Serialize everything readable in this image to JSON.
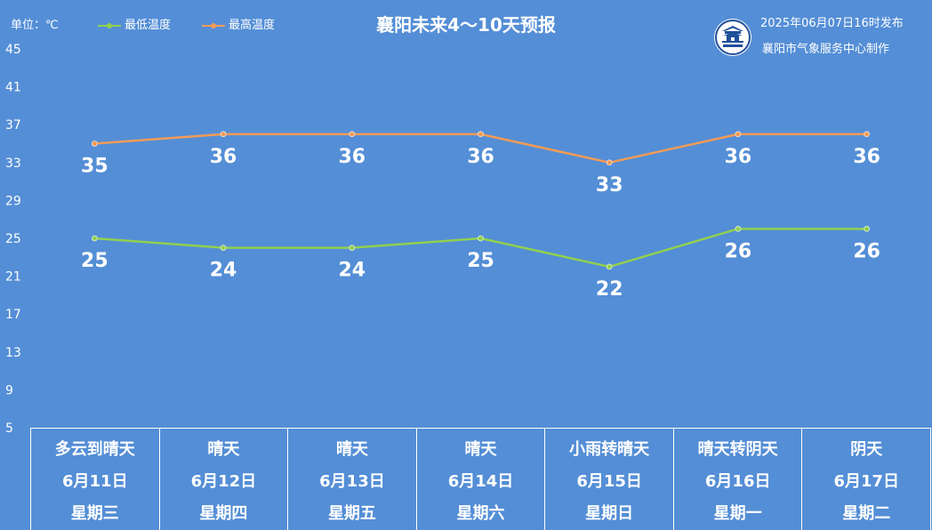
{
  "header": {
    "unit_label": "单位：℃",
    "title": "襄阳未来4～10天预报",
    "issue_time": "2025年06月07日16时发布",
    "issuer": "襄阳市气象服务中心制作",
    "logo_icon": "city-gate-logo-icon"
  },
  "chart_data": {
    "type": "line",
    "title": "襄阳未来4～10天预报",
    "xlabel": "",
    "ylabel": "单位：℃",
    "ylim": [
      5,
      45
    ],
    "yticks": [
      5,
      9,
      13,
      17,
      21,
      25,
      29,
      33,
      37,
      41,
      45
    ],
    "grid": false,
    "legend_position": "top-left",
    "categories": [
      "6月11日",
      "6月12日",
      "6月13日",
      "6月14日",
      "6月15日",
      "6月16日",
      "6月17日"
    ],
    "series": [
      {
        "name": "最低温度",
        "color": "#92d050",
        "values": [
          25,
          24,
          24,
          25,
          22,
          26,
          26
        ]
      },
      {
        "name": "最高温度",
        "color": "#f39b56",
        "values": [
          35,
          36,
          36,
          36,
          33,
          36,
          36
        ]
      }
    ]
  },
  "days": [
    {
      "weather": "多云到晴天",
      "date": "6月11日",
      "weekday": "星期三"
    },
    {
      "weather": "晴天",
      "date": "6月12日",
      "weekday": "星期四"
    },
    {
      "weather": "晴天",
      "date": "6月13日",
      "weekday": "星期五"
    },
    {
      "weather": "晴天",
      "date": "6月14日",
      "weekday": "星期六"
    },
    {
      "weather": "小雨转晴天",
      "date": "6月15日",
      "weekday": "星期日"
    },
    {
      "weather": "晴天转阴天",
      "date": "6月16日",
      "weekday": "星期一"
    },
    {
      "weather": "阴天",
      "date": "6月17日",
      "weekday": "星期二"
    }
  ],
  "colors": {
    "background": "#548ed6",
    "text": "#ffffff",
    "low_line": "#92d050",
    "high_line": "#f39b56",
    "logo_blue": "#1f4f9a"
  }
}
